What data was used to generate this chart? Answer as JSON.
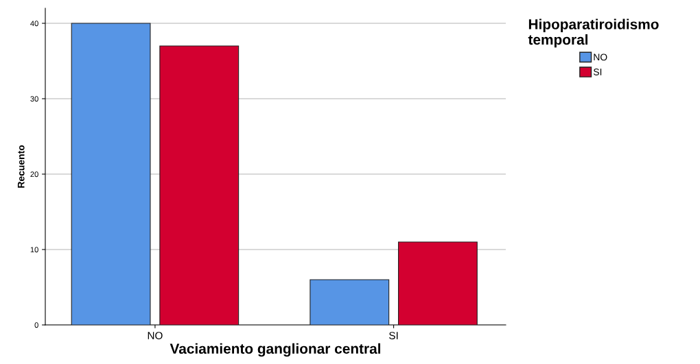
{
  "chart_data": {
    "type": "bar",
    "xlabel": "Vaciamiento ganglionar central",
    "ylabel": "Recuento",
    "legend_title": "Hipoparatiroidismo\ntemporal",
    "categories": [
      "NO",
      "SI"
    ],
    "series": [
      {
        "name": "NO",
        "color": "#5795e5",
        "values": [
          40,
          6
        ]
      },
      {
        "name": "SI",
        "color": "#d30030",
        "values": [
          37,
          11
        ]
      }
    ],
    "ylim": [
      0,
      42
    ],
    "yticks": [
      0,
      10,
      20,
      30,
      40
    ],
    "grid": "y",
    "legend": "top right"
  }
}
